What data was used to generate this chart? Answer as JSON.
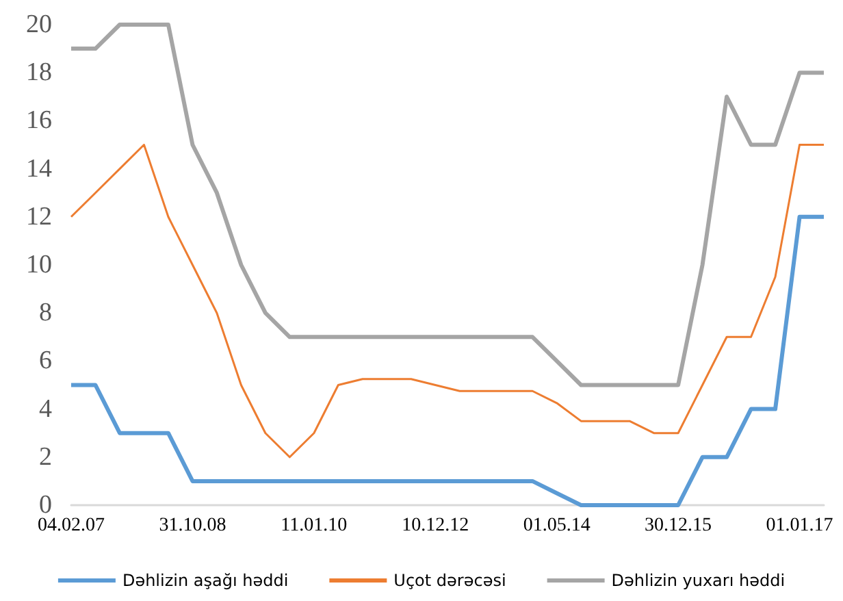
{
  "chart_data": {
    "type": "line",
    "categories": [
      "04.02.07",
      null,
      null,
      null,
      null,
      "31.10.08",
      null,
      null,
      null,
      null,
      "11.01.10",
      null,
      null,
      null,
      null,
      "10.12.12",
      null,
      null,
      null,
      null,
      "01.05.14",
      null,
      null,
      null,
      null,
      "30.12.15",
      null,
      null,
      null,
      null,
      "01.01.17",
      null
    ],
    "series": [
      {
        "name": "Dəhlizin aşağı həddi",
        "color": "#5b9bd5",
        "values": [
          5,
          5,
          3,
          3,
          3,
          1,
          1,
          1,
          1,
          1,
          1,
          1,
          1,
          1,
          1,
          1,
          1,
          1,
          1,
          1,
          0.5,
          0,
          0,
          0,
          0,
          0,
          2,
          2,
          4,
          4,
          12,
          12
        ]
      },
      {
        "name": "Uçot dərəcəsi",
        "color": "#ed7d31",
        "values": [
          12,
          13,
          14,
          15,
          12,
          10,
          8,
          5,
          3,
          2,
          3,
          5,
          5.25,
          5.25,
          5.25,
          5,
          4.75,
          4.75,
          4.75,
          4.75,
          4.25,
          3.5,
          3.5,
          3.5,
          3,
          3,
          5,
          7,
          7,
          9.5,
          15,
          15
        ]
      },
      {
        "name": "Dəhlizin yuxarı həddi",
        "color": "#a5a5a5",
        "values": [
          19,
          19,
          20,
          20,
          20,
          15,
          13,
          10,
          8,
          7,
          7,
          7,
          7,
          7,
          7,
          7,
          7,
          7,
          7,
          7,
          6,
          5,
          5,
          5,
          5,
          5,
          10,
          17,
          15,
          15,
          18,
          18
        ]
      }
    ],
    "ylim": [
      0,
      20
    ],
    "yticks": [
      0,
      2,
      4,
      6,
      8,
      10,
      12,
      14,
      16,
      18,
      20
    ],
    "grid": false,
    "legend": "bottom",
    "marker": "none"
  }
}
